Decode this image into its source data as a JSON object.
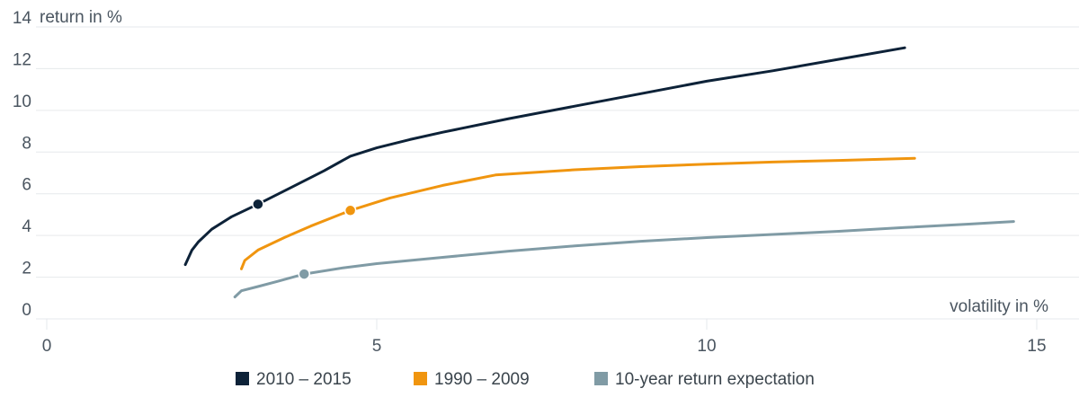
{
  "chart_data": {
    "type": "line",
    "title": "",
    "ylabel": "return in %",
    "xlabel": "volatility in %",
    "xlim": [
      0,
      15
    ],
    "ylim": [
      0,
      14
    ],
    "xticks": [
      0,
      5,
      10,
      15
    ],
    "yticks": [
      0,
      2,
      4,
      6,
      8,
      10,
      12,
      14
    ],
    "grid": "horizontal",
    "legend_position": "bottom",
    "series": [
      {
        "name": "2010 – 2015",
        "color": "#0d2238",
        "x": [
          2.1,
          2.2,
          2.3,
          2.5,
          2.8,
          3.2,
          3.7,
          4.2,
          4.6,
          5.0,
          5.5,
          6.0,
          7.0,
          8.0,
          9.0,
          10.0,
          11.0,
          12.0,
          13.0
        ],
        "y": [
          2.6,
          3.3,
          3.7,
          4.3,
          4.9,
          5.5,
          6.3,
          7.1,
          7.8,
          8.2,
          8.6,
          8.95,
          9.6,
          10.2,
          10.8,
          11.4,
          11.9,
          12.45,
          13.0
        ],
        "highlight": {
          "x": 3.2,
          "y": 5.5
        }
      },
      {
        "name": "1990 – 2009",
        "color": "#f0950f",
        "x": [
          2.95,
          3.0,
          3.2,
          3.6,
          4.0,
          4.6,
          5.2,
          6.0,
          6.8,
          8.0,
          9.0,
          10.0,
          11.0,
          12.0,
          13.15
        ],
        "y": [
          2.4,
          2.8,
          3.3,
          3.9,
          4.45,
          5.2,
          5.8,
          6.4,
          6.9,
          7.15,
          7.3,
          7.42,
          7.52,
          7.6,
          7.7
        ],
        "highlight": {
          "x": 4.6,
          "y": 5.2
        }
      },
      {
        "name": "10-year return expectation",
        "color": "#809ba5",
        "x": [
          2.85,
          2.95,
          3.2,
          3.5,
          3.9,
          4.5,
          5.0,
          6.0,
          7.0,
          8.0,
          9.0,
          10.0,
          11.0,
          12.0,
          13.0,
          14.0,
          14.65
        ],
        "y": [
          1.05,
          1.35,
          1.55,
          1.8,
          2.15,
          2.45,
          2.65,
          2.95,
          3.25,
          3.5,
          3.72,
          3.9,
          4.05,
          4.2,
          4.38,
          4.55,
          4.67
        ],
        "highlight": {
          "x": 3.9,
          "y": 2.15
        }
      }
    ]
  }
}
